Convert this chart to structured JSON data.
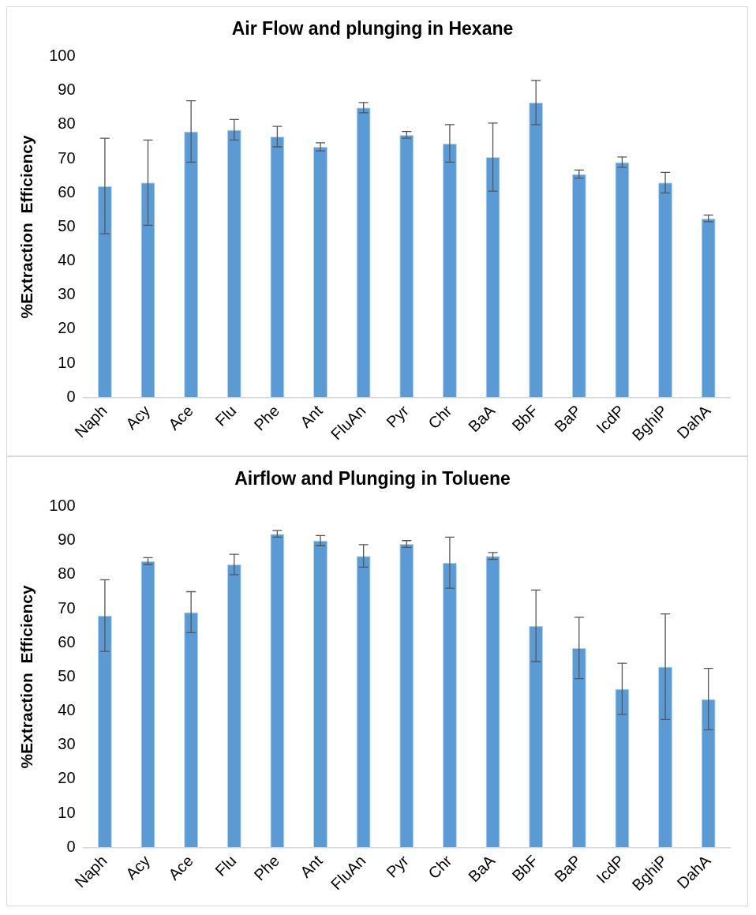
{
  "chart_data": [
    {
      "type": "bar",
      "title": "Air Flow and plunging in Hexane",
      "ylabel": "%Extraction  Efficiency",
      "categories": [
        "Naph",
        "Acy",
        "Ace",
        "Flu",
        "Phe",
        "Ant",
        "FluAn",
        "Pyr",
        "Chr",
        "BaA",
        "BbF",
        "BaP",
        "IcdP",
        "BghiP",
        "DahA"
      ],
      "values": [
        62,
        63,
        78,
        78.5,
        76.5,
        73.5,
        85,
        77,
        74.5,
        70.5,
        86.5,
        65.5,
        69,
        63,
        52.5
      ],
      "errors": [
        14,
        12.5,
        9,
        3,
        3,
        1.2,
        1.5,
        1,
        5.5,
        10,
        6.5,
        1.2,
        1.5,
        3,
        1
      ],
      "color": "#5b9bd5",
      "ylim": [
        0,
        100
      ],
      "yticks": [
        0,
        10,
        20,
        30,
        40,
        50,
        60,
        70,
        80,
        90,
        100
      ]
    },
    {
      "type": "bar",
      "title": "Airflow and Plunging in Toluene",
      "ylabel": "%Extraction  Efficiency",
      "categories": [
        "Naph",
        "Acy",
        "Ace",
        "Flu",
        "Phe",
        "Ant",
        "FluAn",
        "Pyr",
        "Chr",
        "BaA",
        "BbF",
        "BaP",
        "IcdP",
        "BghiP",
        "DahA"
      ],
      "values": [
        68,
        84,
        69,
        83,
        92,
        90,
        85.5,
        89,
        83.5,
        85.5,
        65,
        58.5,
        46.5,
        53,
        43.5
      ],
      "errors": [
        10.5,
        1,
        6,
        3,
        1,
        1.5,
        3.3,
        1,
        7.5,
        1,
        10.5,
        9,
        7.5,
        15.5,
        9
      ],
      "color": "#5b9bd5",
      "ylim": [
        0,
        100
      ],
      "yticks": [
        0,
        10,
        20,
        30,
        40,
        50,
        60,
        70,
        80,
        90,
        100
      ]
    }
  ]
}
